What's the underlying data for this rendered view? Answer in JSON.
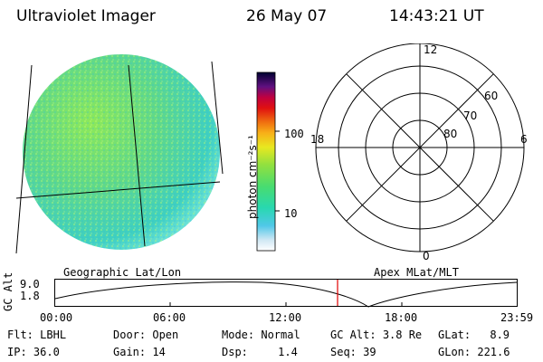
{
  "header": {
    "title": "Ultraviolet Imager",
    "date": "26 May 07",
    "time": "14:43:21 UT"
  },
  "panels": {
    "left_caption": "Geographic Lat/Lon",
    "right_caption": "Apex MLat/MLT"
  },
  "colorbar": {
    "unit_label": "photon cm⁻²s⁻¹",
    "ticks": [
      "100",
      "10"
    ]
  },
  "polar_grid": {
    "mlt_labels": {
      "top": "12",
      "left": "18",
      "right": "6",
      "bottom": "0"
    },
    "lat_labels": [
      "60",
      "70",
      "80"
    ]
  },
  "altitude_plot": {
    "ylabel": "GC Alt",
    "y_ticks": [
      "9.0",
      "1.8"
    ],
    "x_ticks": [
      "00:00",
      "06:00",
      "12:00",
      "18:00",
      "23:59"
    ],
    "current_time_marker": "14:43",
    "marker_color": "#e00000"
  },
  "footer": {
    "row1": [
      {
        "label": "Flt:",
        "value": "LBHL"
      },
      {
        "label": "Door:",
        "value": "Open"
      },
      {
        "label": "Mode:",
        "value": "Normal"
      },
      {
        "label": "GC Alt:",
        "value": "3.8 Re"
      },
      {
        "label": "GLat:",
        "value": "8.9"
      }
    ],
    "row2": [
      {
        "label": "IP:",
        "value": "36.0"
      },
      {
        "label": "Gain:",
        "value": "14"
      },
      {
        "label": "Dsp:",
        "value": "1.4"
      },
      {
        "label": "Seq:",
        "value": "39"
      },
      {
        "label": "GLon:",
        "value": "221.6"
      }
    ]
  }
}
